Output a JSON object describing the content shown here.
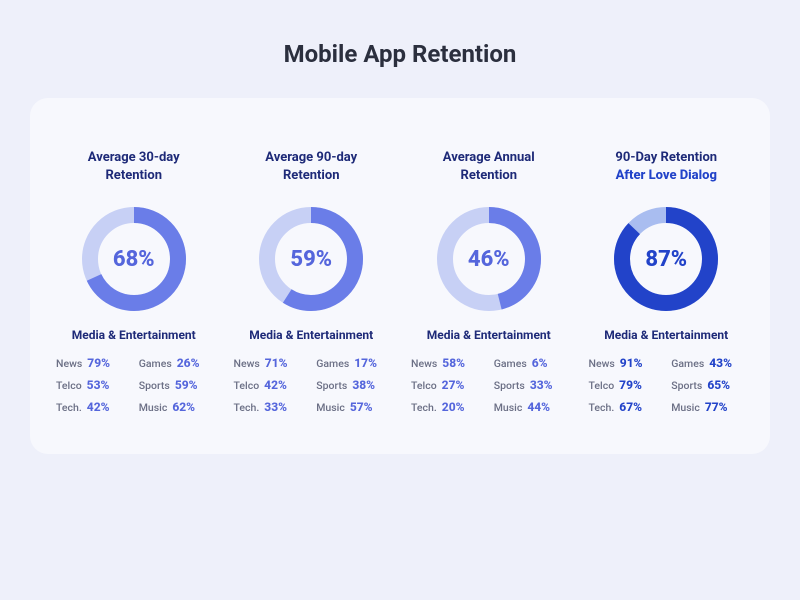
{
  "title": "Mobile App Retention",
  "colors": {
    "page_bg": "#eef0fa",
    "card_bg": "#f7f8fd",
    "title_text": "#2b2f3e",
    "heading_text": "#1e2a78",
    "label_text": "#6b6f85",
    "donut_light_track": "#c7d0f5",
    "donut_light_fill": "#6a7de8",
    "donut_dark_track": "#a9bdf0",
    "donut_dark_fill": "#2243c9",
    "value_light": "#5566dc",
    "value_dark": "#2243c9"
  },
  "donut": {
    "size": 110,
    "stroke_width": 16,
    "radius": 44
  },
  "metrics": [
    {
      "title_line1": "Average 30-day",
      "title_line2": "Retention",
      "title_line2_bold": false,
      "percent": 68,
      "percent_text": "68%",
      "variant": "light",
      "category": "Media & Entertainment",
      "breakdown": [
        {
          "label": "News",
          "value": "79%"
        },
        {
          "label": "Games",
          "value": "26%"
        },
        {
          "label": "Telco",
          "value": "53%"
        },
        {
          "label": "Sports",
          "value": "59%"
        },
        {
          "label": "Tech.",
          "value": "42%"
        },
        {
          "label": "Music",
          "value": "62%"
        }
      ]
    },
    {
      "title_line1": "Average 90-day",
      "title_line2": "Retention",
      "title_line2_bold": false,
      "percent": 59,
      "percent_text": "59%",
      "variant": "light",
      "category": "Media & Entertainment",
      "breakdown": [
        {
          "label": "News",
          "value": "71%"
        },
        {
          "label": "Games",
          "value": "17%"
        },
        {
          "label": "Telco",
          "value": "42%"
        },
        {
          "label": "Sports",
          "value": "38%"
        },
        {
          "label": "Tech.",
          "value": "33%"
        },
        {
          "label": "Music",
          "value": "57%"
        }
      ]
    },
    {
      "title_line1": "Average Annual",
      "title_line2": "Retention",
      "title_line2_bold": false,
      "percent": 46,
      "percent_text": "46%",
      "variant": "light",
      "category": "Media & Entertainment",
      "breakdown": [
        {
          "label": "News",
          "value": "58%"
        },
        {
          "label": "Games",
          "value": "6%"
        },
        {
          "label": "Telco",
          "value": "27%"
        },
        {
          "label": "Sports",
          "value": "33%"
        },
        {
          "label": "Tech.",
          "value": "20%"
        },
        {
          "label": "Music",
          "value": "44%"
        }
      ]
    },
    {
      "title_line1": "90-Day Retention",
      "title_line2": "After Love Dialog",
      "title_line2_bold": true,
      "percent": 87,
      "percent_text": "87%",
      "variant": "dark",
      "category": "Media & Entertainment",
      "breakdown": [
        {
          "label": "News",
          "value": "91%"
        },
        {
          "label": "Games",
          "value": "43%"
        },
        {
          "label": "Telco",
          "value": "79%"
        },
        {
          "label": "Sports",
          "value": "65%"
        },
        {
          "label": "Tech.",
          "value": "67%"
        },
        {
          "label": "Music",
          "value": "77%"
        }
      ]
    }
  ]
}
